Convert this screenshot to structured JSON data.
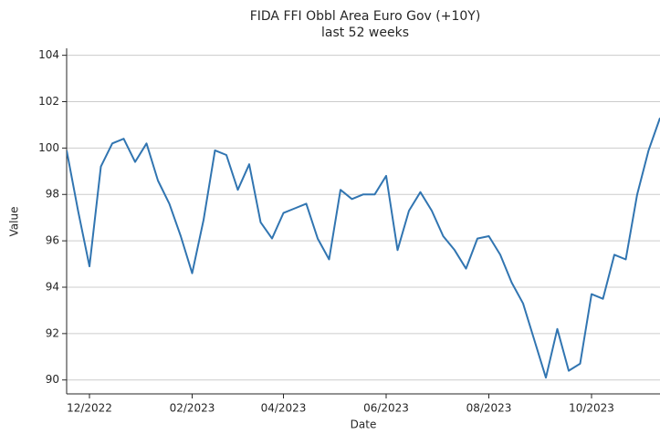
{
  "chart_data": {
    "type": "line",
    "title": "FIDA FFI Obbl Area Euro Gov (+10Y)",
    "subtitle": "last 52 weeks",
    "x_label": "Date",
    "y_label": "Value",
    "categories": [
      null,
      null,
      "12/2022",
      null,
      null,
      null,
      null,
      null,
      null,
      null,
      null,
      "02/2023",
      null,
      null,
      null,
      null,
      null,
      null,
      null,
      "04/2023",
      null,
      null,
      null,
      null,
      null,
      null,
      null,
      null,
      "06/2023",
      null,
      null,
      null,
      null,
      null,
      null,
      null,
      null,
      "08/2023",
      null,
      null,
      null,
      null,
      null,
      null,
      null,
      null,
      "10/2023",
      null,
      null,
      null,
      null,
      null,
      null
    ],
    "series": [
      {
        "name": "FIDA FFI Obbl Area Euro Gov (+10Y)",
        "color": "#3175b1",
        "values": [
          99.9,
          97.3,
          94.9,
          99.2,
          100.2,
          100.4,
          99.4,
          100.2,
          98.6,
          97.6,
          96.2,
          94.6,
          96.9,
          99.9,
          99.7,
          98.2,
          99.3,
          96.8,
          96.1,
          97.2,
          97.4,
          97.6,
          96.1,
          95.2,
          98.2,
          97.8,
          98.0,
          98.0,
          98.8,
          95.6,
          97.3,
          98.1,
          97.3,
          96.2,
          95.6,
          94.8,
          96.1,
          96.2,
          95.4,
          94.2,
          93.3,
          91.7,
          90.1,
          92.2,
          90.4,
          90.7,
          93.7,
          93.5,
          95.4,
          95.2,
          98.0,
          99.9,
          101.3
        ]
      }
    ],
    "ylim": [
      89.4,
      104.3
    ],
    "yticks": [
      90,
      92,
      94,
      96,
      98,
      100,
      102,
      104
    ],
    "grid": true
  }
}
